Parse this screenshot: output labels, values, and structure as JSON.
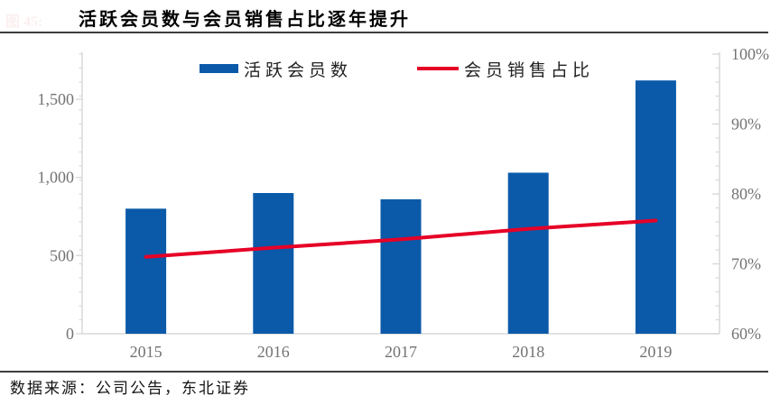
{
  "header": {
    "figure_label": "图 45:",
    "title": "活跃会员数与会员销售占比逐年提升"
  },
  "footer": {
    "source": "数据来源：公司公告，东北证券"
  },
  "legend": {
    "items": [
      {
        "label": "活跃会员数",
        "marker": "bar"
      },
      {
        "label": "会员销售占比",
        "marker": "line"
      }
    ]
  },
  "colors": {
    "bar": "#0b5aa9",
    "line": "#e60027",
    "axis_text": "#737373",
    "axis_line": "#d9d9d9",
    "rule": "#3d3d3d",
    "title_text": "#000000"
  },
  "chart_data": {
    "type": "bar+line combo",
    "title": "活跃会员数与会员销售占比逐年提升",
    "categories": [
      "2015",
      "2016",
      "2017",
      "2018",
      "2019"
    ],
    "series": [
      {
        "name": "活跃会员数",
        "type": "bar",
        "axis": "left",
        "values": [
          800,
          900,
          860,
          1030,
          1620
        ]
      },
      {
        "name": "会员销售占比",
        "type": "line",
        "axis": "right",
        "values": [
          71.0,
          72.3,
          73.5,
          75.0,
          76.2
        ]
      }
    ],
    "left_axis": {
      "tick_labels": [
        "0",
        "500",
        "1,000",
        "1,500"
      ],
      "tick_values": [
        0,
        500,
        1000,
        1500
      ],
      "lim": [
        0,
        1800
      ]
    },
    "right_axis": {
      "tick_labels": [
        "60%",
        "70%",
        "80%",
        "90%",
        "100%"
      ],
      "tick_values": [
        60,
        70,
        80,
        90,
        100
      ],
      "lim": [
        60,
        100
      ]
    },
    "grid": false,
    "legend_position": "top-inside"
  }
}
